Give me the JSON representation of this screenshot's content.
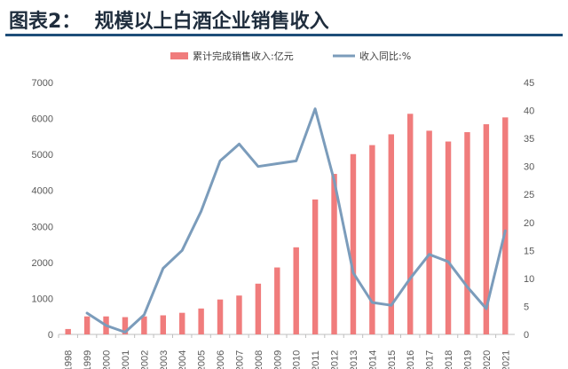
{
  "figure": {
    "label": "图表2：",
    "title": "规模以上白酒企业销售收入"
  },
  "chart_data": {
    "type": "bar+line",
    "categories": [
      "1998",
      "1999",
      "2000",
      "2001",
      "2002",
      "2003",
      "2004",
      "2005",
      "2006",
      "2007",
      "2008",
      "2009",
      "2010",
      "2011",
      "2012",
      "2013",
      "2014",
      "2015",
      "2016",
      "2017",
      "2018",
      "2019",
      "2020",
      "2021"
    ],
    "series": [
      {
        "name": "累计完成销售收入:亿元",
        "type": "bar",
        "axis": "left",
        "color": "#f07c7c",
        "values": [
          150,
          500,
          500,
          480,
          500,
          530,
          600,
          720,
          970,
          1080,
          1410,
          1860,
          2420,
          3750,
          4460,
          5010,
          5260,
          5560,
          6130,
          5660,
          5360,
          5620,
          5840,
          6030
        ]
      },
      {
        "name": "收入同比:%",
        "type": "line",
        "axis": "right",
        "color": "#7b9cbb",
        "values": [
          null,
          3.8,
          1.6,
          0.4,
          3.5,
          11.8,
          15,
          22,
          31,
          34,
          30,
          30.5,
          31,
          40.3,
          27.5,
          11,
          5.7,
          5.2,
          10,
          14.3,
          13,
          8.5,
          4.6,
          18.5
        ]
      }
    ],
    "yleft": {
      "min": 0,
      "max": 7000,
      "ticks": [
        0,
        1000,
        2000,
        3000,
        4000,
        5000,
        6000,
        7000
      ]
    },
    "yright": {
      "min": 0,
      "max": 45,
      "ticks": [
        0,
        5,
        10,
        15,
        20,
        25,
        30,
        35,
        40,
        45
      ]
    },
    "legend_position": "top-center",
    "grid": false
  }
}
